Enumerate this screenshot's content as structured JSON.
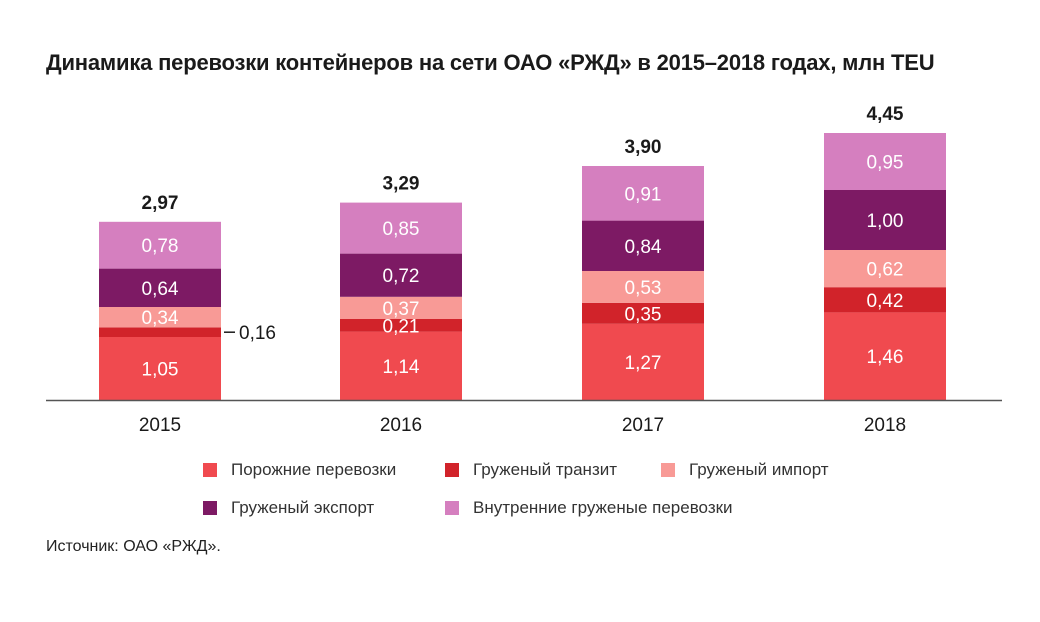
{
  "chart_data": {
    "type": "bar",
    "stacked": true,
    "title": "Динамика перевозки контейнеров на сети ОАО «РЖД» в 2015–2018 годах, млн TEU",
    "categories": [
      "2015",
      "2016",
      "2017",
      "2018"
    ],
    "series": [
      {
        "name": "Порожние перевозки",
        "values": [
          1.05,
          1.14,
          1.27,
          1.46
        ],
        "labels": [
          "1,05",
          "1,14",
          "1,27",
          "1,46"
        ],
        "color": "#f04a4f"
      },
      {
        "name": "Груженый транзит",
        "values": [
          0.16,
          0.21,
          0.35,
          0.42
        ],
        "labels": [
          "0,16",
          "0,21",
          "0,35",
          "0,42"
        ],
        "color": "#d1232a"
      },
      {
        "name": "Груженый импорт",
        "values": [
          0.34,
          0.37,
          0.53,
          0.62
        ],
        "labels": [
          "0,34",
          "0,37",
          "0,53",
          "0,62"
        ],
        "color": "#f89a96"
      },
      {
        "name": "Груженый экспорт",
        "values": [
          0.64,
          0.72,
          0.84,
          1.0
        ],
        "labels": [
          "0,64",
          "0,72",
          "0,84",
          "1,00"
        ],
        "color": "#7d1a64"
      },
      {
        "name": "Внутренние груженые перевозки",
        "values": [
          0.78,
          0.85,
          0.91,
          0.95
        ],
        "labels": [
          "0,78",
          "0,85",
          "0,91",
          "0,95"
        ],
        "color": "#d57fbf"
      }
    ],
    "totals": [
      "2,97",
      "3,29",
      "3,90",
      "4,45"
    ],
    "total_values": [
      2.97,
      3.29,
      3.9,
      4.45
    ],
    "ylim": [
      0,
      4.45
    ],
    "grid": false,
    "legend_position": "bottom",
    "source": "Источник: ОАО «РЖД»."
  }
}
